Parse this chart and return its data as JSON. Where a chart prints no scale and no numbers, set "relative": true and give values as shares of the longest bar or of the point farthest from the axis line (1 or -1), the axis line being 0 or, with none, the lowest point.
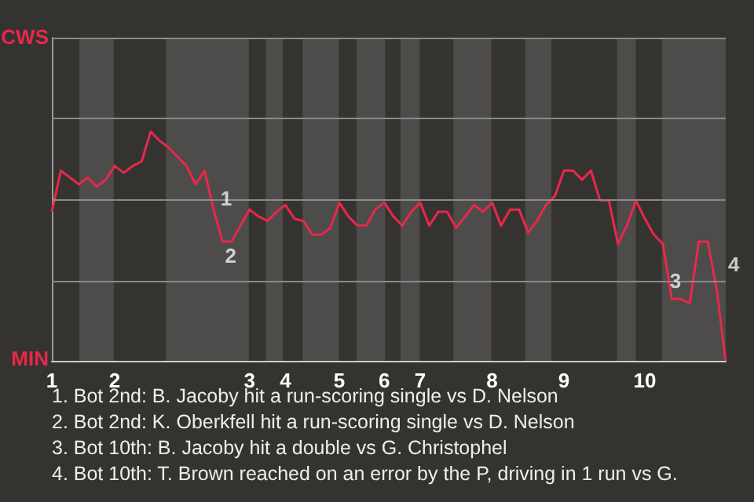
{
  "chart_data": {
    "type": "line",
    "relative": true,
    "categories": [
      "1",
      null,
      null,
      null,
      null,
      null,
      null,
      "2",
      null,
      null,
      null,
      null,
      null,
      null,
      null,
      null,
      null,
      null,
      null,
      null,
      null,
      null,
      "3",
      null,
      null,
      null,
      "4",
      null,
      null,
      null,
      null,
      null,
      "5",
      null,
      null,
      null,
      null,
      "6",
      null,
      null,
      null,
      "7",
      null,
      null,
      null,
      null,
      null,
      null,
      null,
      "8",
      null,
      null,
      null,
      null,
      null,
      null,
      null,
      "9",
      null,
      null,
      null,
      null,
      null,
      null,
      null,
      null,
      "10",
      null,
      null,
      null,
      null,
      null,
      null,
      null,
      null,
      null
    ],
    "series": [
      {
        "color": "#e8284a",
        "values": [
          0.65,
          0.83,
          0.8,
          0.77,
          0.8,
          0.76,
          0.79,
          0.85,
          0.82,
          0.85,
          0.87,
          1,
          0.96,
          0.93,
          0.89,
          0.85,
          0.77,
          0.83,
          0.66,
          0.52,
          0.52,
          0.59,
          0.66,
          0.63,
          0.61,
          0.65,
          0.68,
          0.62,
          0.61,
          0.55,
          0.55,
          0.58,
          0.69,
          0.63,
          0.59,
          0.59,
          0.66,
          0.69,
          0.63,
          0.59,
          0.65,
          0.69,
          0.59,
          0.65,
          0.65,
          0.58,
          0.63,
          0.68,
          0.65,
          0.69,
          0.59,
          0.66,
          0.66,
          0.56,
          0.61,
          0.68,
          0.72,
          0.83,
          0.83,
          0.79,
          0.83,
          0.7,
          0.7,
          0.51,
          0.59,
          0.7,
          0.62,
          0.55,
          0.51,
          0.27,
          0.27,
          0.25,
          0.52,
          0.52,
          0.31,
          0
        ]
      }
    ],
    "marker": "none",
    "ref_lines": [
      {
        "axis": "y",
        "value": 0.35,
        "color": "#8a8a8a"
      },
      {
        "axis": "y",
        "value": 0.7,
        "color": "#8a8a8a"
      },
      {
        "axis": "y",
        "value": 1.06,
        "color": "#8a8a8a"
      },
      {
        "axis": "y",
        "value": 1.41,
        "color": "#8a8a8a"
      }
    ],
    "annotations": [
      "CWS",
      "MIN",
      "1",
      "2",
      "3",
      "4",
      "1. Bot 2nd: B. Jacoby hit a run-scoring single vs D. Nelson",
      "2. Bot 2nd: K. Oberkfell hit a run-scoring single vs D. Nelson",
      "3. Bot 10th: B. Jacoby hit a double vs G. Christophel",
      "4. Bot 10th: T. Brown reached on an error by the P, driving in 1 run vs G."
    ]
  }
}
